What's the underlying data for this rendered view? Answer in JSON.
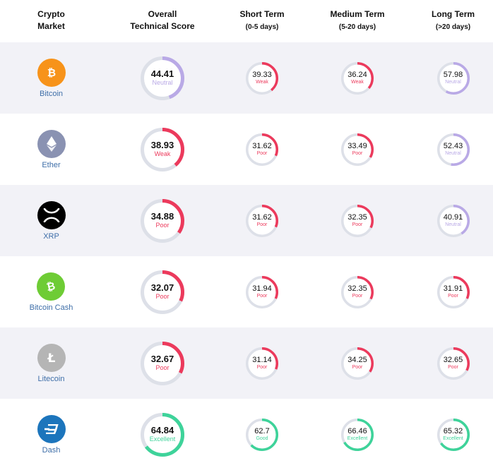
{
  "header": {
    "col1_line1": "Crypto",
    "col1_line2": "Market",
    "col2_line1": "Overall",
    "col2_line2": "Technical Score",
    "col3_title": "Short Term",
    "col3_sub": "(0-5 days)",
    "col4_title": "Medium Term",
    "col4_sub": "(5-20 days)",
    "col5_title": "Long Term",
    "col5_sub": "(>20 days)"
  },
  "colors": {
    "Neutral": "#b9a9e6",
    "Weak": "#ec3a5c",
    "Poor": "#ec3a5c",
    "Good": "#3ed39a",
    "Excellent": "#3ed39a",
    "track": "#dde0e8"
  },
  "rows": [
    {
      "name": "Bitcoin",
      "logo_color": "#f7931a",
      "icon": "bitcoin-icon",
      "overall": {
        "value": "44.41",
        "label": "Neutral",
        "pct": 0.4441
      },
      "short": {
        "value": "39.33",
        "label": "Weak",
        "pct": 0.3933
      },
      "medium": {
        "value": "36.24",
        "label": "Weak",
        "pct": 0.3624
      },
      "long": {
        "value": "57.98",
        "label": "Neutral",
        "pct": 0.5798
      }
    },
    {
      "name": "Ether",
      "logo_color": "#8a92b2",
      "icon": "ethereum-icon",
      "overall": {
        "value": "38.93",
        "label": "Weak",
        "pct": 0.3893
      },
      "short": {
        "value": "31.62",
        "label": "Poor",
        "pct": 0.3162
      },
      "medium": {
        "value": "33.49",
        "label": "Poor",
        "pct": 0.3349
      },
      "long": {
        "value": "52.43",
        "label": "Neutral",
        "pct": 0.5243
      }
    },
    {
      "name": "XRP",
      "logo_color": "#000000",
      "icon": "xrp-icon",
      "overall": {
        "value": "34.88",
        "label": "Poor",
        "pct": 0.3488
      },
      "short": {
        "value": "31.62",
        "label": "Poor",
        "pct": 0.3162
      },
      "medium": {
        "value": "32.35",
        "label": "Poor",
        "pct": 0.3235
      },
      "long": {
        "value": "40.91",
        "label": "Neutral",
        "pct": 0.4091
      }
    },
    {
      "name": "Bitcoin Cash",
      "logo_color": "#6ecc35",
      "icon": "bitcoin-cash-icon",
      "overall": {
        "value": "32.07",
        "label": "Poor",
        "pct": 0.3207
      },
      "short": {
        "value": "31.94",
        "label": "Poor",
        "pct": 0.3194
      },
      "medium": {
        "value": "32.35",
        "label": "Poor",
        "pct": 0.3235
      },
      "long": {
        "value": "31.91",
        "label": "Poor",
        "pct": 0.3191
      }
    },
    {
      "name": "Litecoin",
      "logo_color": "#b5b5b5",
      "icon": "litecoin-icon",
      "overall": {
        "value": "32.67",
        "label": "Poor",
        "pct": 0.3267
      },
      "short": {
        "value": "31.14",
        "label": "Poor",
        "pct": 0.3114
      },
      "medium": {
        "value": "34.25",
        "label": "Poor",
        "pct": 0.3425
      },
      "long": {
        "value": "32.65",
        "label": "Poor",
        "pct": 0.3265
      }
    },
    {
      "name": "Dash",
      "logo_color": "#1c75bc",
      "icon": "dash-icon",
      "overall": {
        "value": "64.84",
        "label": "Excellent",
        "pct": 0.6484
      },
      "short": {
        "value": "62.7",
        "label": "Good",
        "pct": 0.627
      },
      "medium": {
        "value": "66.46",
        "label": "Excellent",
        "pct": 0.6646
      },
      "long": {
        "value": "65.32",
        "label": "Excellent",
        "pct": 0.6532
      }
    }
  ]
}
